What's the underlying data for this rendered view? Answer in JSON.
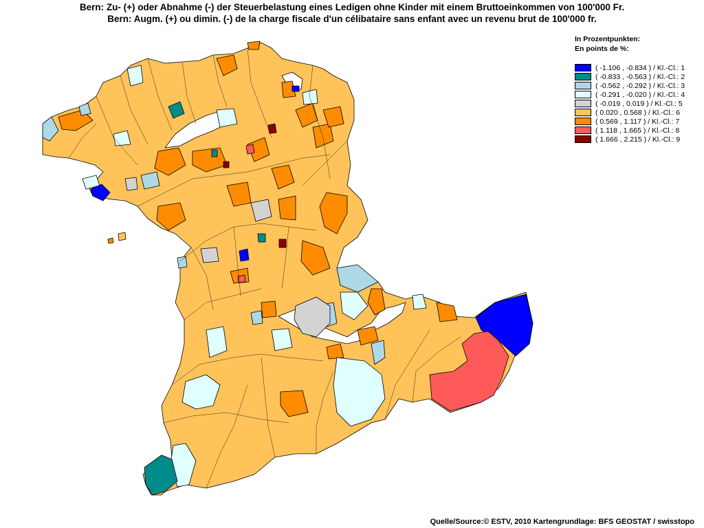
{
  "title": {
    "line1": "Bern: Zu- (+) oder Abnahme (-) der Steuerbelastung eines Ledigen ohne Kinder mit einem Bruttoeinkommen von 100'000 Fr.",
    "line2": "Bern: Augm. (+) ou dimin. (-) de la charge fiscale d'un célibataire sans enfant avec un revenu brut de 100'000 fr."
  },
  "legend": {
    "title_line1": "In Prozentpunkten:",
    "title_line2": "En points de %:",
    "items": [
      {
        "label": "( -1.106 , -0.834 ) / Kl.-Cl.: 1",
        "color": "#0000ff"
      },
      {
        "label": "( -0.833 , -0.563 ) / Kl.-Cl.: 2",
        "color": "#008b8b"
      },
      {
        "label": "( -0.562 , -0.292 ) / Kl.-Cl.: 3",
        "color": "#add8e6"
      },
      {
        "label": "( -0.291 , -0.020 ) / Kl.-Cl.: 4",
        "color": "#e0ffff"
      },
      {
        "label": "( -0.019 , 0.019 ) / Kl.-Cl.: 5",
        "color": "#d3d3d3"
      },
      {
        "label": "( 0.020 , 0.568 ) / Kl.-Cl.: 6",
        "color": "#ffc35a"
      },
      {
        "label": "( 0.569 , 1.117 ) / Kl.-Cl.: 7",
        "color": "#ff8c00"
      },
      {
        "label": "( 1.118 , 1.665 ) / Kl.-Cl.: 8",
        "color": "#ff5a5a"
      },
      {
        "label": "( 1.666 , 2.215 ) / Kl.-Cl.: 9",
        "color": "#8b0000"
      }
    ]
  },
  "source": "Quelle/Source:© ESTV, 2010 Kartengrundlage: BFS GEOSTAT / swisstopo"
}
